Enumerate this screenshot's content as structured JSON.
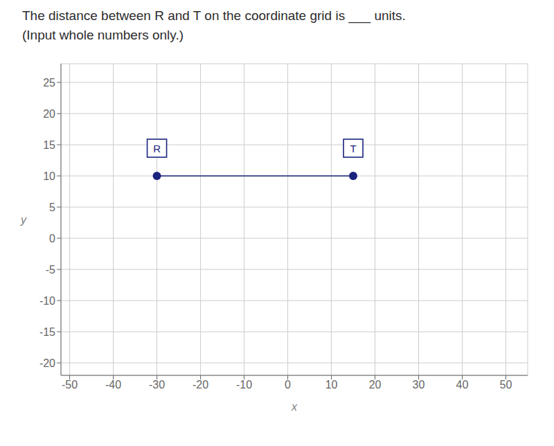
{
  "chart_data": {
    "type": "scatter",
    "title": "The distance between R and T on the coordinate grid is ___ units.",
    "subtitle": "(Input whole numbers only.)",
    "x_label": "x",
    "y_label": "y",
    "x": [
      -30,
      15
    ],
    "values": [
      10,
      10
    ],
    "value_labels": [
      "R",
      "T"
    ],
    "data_labels": true,
    "color": "#1a237e",
    "xlim": [
      -52,
      55
    ],
    "ylim": [
      -22,
      28
    ],
    "xticks": [
      -50,
      -40,
      -30,
      -20,
      -10,
      0,
      10,
      20,
      30,
      40,
      50
    ],
    "yticks": [
      -20,
      -15,
      -10,
      -5,
      0,
      5,
      10,
      15,
      20,
      25
    ],
    "grid": true
  }
}
